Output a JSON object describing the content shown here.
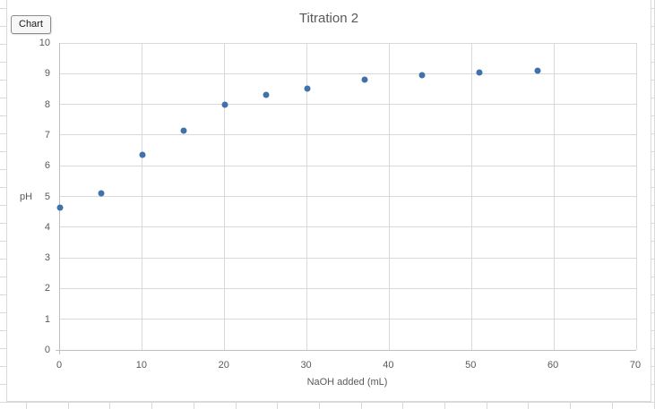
{
  "app": {
    "chart_button_label": "Chart"
  },
  "chart_data": {
    "type": "scatter",
    "title": "Titration 2",
    "xlabel": "NaOH added (mL)",
    "ylabel": "pH",
    "xlim": [
      0,
      70
    ],
    "ylim": [
      0,
      10
    ],
    "xticks": [
      0,
      10,
      20,
      30,
      40,
      50,
      60,
      70
    ],
    "yticks": [
      0,
      1,
      2,
      3,
      4,
      5,
      6,
      7,
      8,
      9,
      10
    ],
    "grid": true,
    "legend": "none",
    "points": [
      {
        "x": 0,
        "y": 4.65
      },
      {
        "x": 5,
        "y": 5.1
      },
      {
        "x": 10,
        "y": 6.35
      },
      {
        "x": 15,
        "y": 7.15
      },
      {
        "x": 20,
        "y": 8.0
      },
      {
        "x": 25,
        "y": 8.3
      },
      {
        "x": 30,
        "y": 8.5
      },
      {
        "x": 37,
        "y": 8.8
      },
      {
        "x": 44,
        "y": 8.95
      },
      {
        "x": 51,
        "y": 9.05
      },
      {
        "x": 58,
        "y": 9.1
      }
    ],
    "colors": {
      "marker": "#4171ab",
      "gridline": "#d9d9d9",
      "axis_line": "#bfbfbf",
      "text": "#595959",
      "sheet_gridline": "#d9d9d9"
    }
  }
}
